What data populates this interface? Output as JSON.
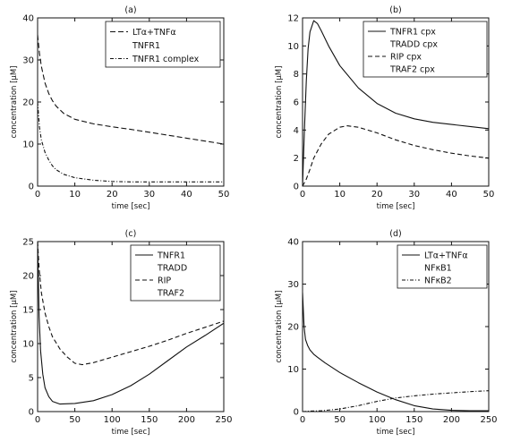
{
  "chart_data": [
    {
      "type": "line",
      "title": "(a)",
      "xlabel": "time [sec]",
      "ylabel": "concentration [μM]",
      "xlim": [
        0,
        50
      ],
      "ylim": [
        0,
        40
      ],
      "xticks": [
        0,
        10,
        20,
        30,
        40,
        50
      ],
      "yticks": [
        0,
        10,
        20,
        30,
        40
      ],
      "grid": false,
      "legend_position": "top-right",
      "series": [
        {
          "name": "LTα+TNFα",
          "dash": "6,3",
          "x": [
            0,
            0.5,
            1,
            2,
            3,
            4,
            5,
            7,
            10,
            15,
            20,
            25,
            30,
            35,
            40,
            45,
            50
          ],
          "y": [
            36,
            31.5,
            28.5,
            24.5,
            22,
            20.3,
            19,
            17.3,
            15.9,
            14.8,
            14.1,
            13.5,
            12.8,
            12.1,
            11.4,
            10.7,
            10
          ]
        },
        {
          "name": "TNFR1",
          "dash": "none",
          "x": [],
          "y": []
        },
        {
          "name": "TNFR1 complex",
          "dash": "4,2,1,2",
          "x": [
            0,
            0.5,
            1,
            2,
            3,
            4,
            5,
            7,
            10,
            15,
            20,
            25,
            30,
            35,
            40,
            45,
            50
          ],
          "y": [
            20,
            14,
            11,
            8,
            6.2,
            4.8,
            3.9,
            2.8,
            2.0,
            1.4,
            1.1,
            1.0,
            1.0,
            1.0,
            1.0,
            1.0,
            1.0
          ]
        }
      ]
    },
    {
      "type": "line",
      "title": "(b)",
      "xlabel": "time [sec]",
      "ylabel": "concentration [μM]",
      "xlim": [
        0,
        50
      ],
      "ylim": [
        0,
        12
      ],
      "xticks": [
        0,
        10,
        20,
        30,
        40,
        50
      ],
      "yticks": [
        0,
        2,
        4,
        6,
        8,
        10,
        12
      ],
      "grid": false,
      "legend_position": "top-right",
      "series": [
        {
          "name": "TNFR1 cpx",
          "dash": "none",
          "x": [
            0,
            0.5,
            1,
            1.5,
            2,
            3,
            4,
            5,
            7,
            10,
            15,
            20,
            25,
            30,
            35,
            40,
            45,
            50
          ],
          "y": [
            0,
            4,
            7.5,
            9.8,
            11,
            11.8,
            11.6,
            11.1,
            10.0,
            8.6,
            7.0,
            5.9,
            5.2,
            4.8,
            4.55,
            4.4,
            4.25,
            4.1
          ]
        },
        {
          "name": "TRADD cpx",
          "dash": "none",
          "x": [],
          "y": []
        },
        {
          "name": "RIP cpx",
          "dash": "5,3",
          "x": [
            0,
            1,
            2,
            3,
            5,
            7,
            10,
            12,
            15,
            20,
            25,
            30,
            35,
            40,
            45,
            50
          ],
          "y": [
            0,
            0.5,
            1.2,
            2.0,
            3.0,
            3.7,
            4.2,
            4.3,
            4.2,
            3.8,
            3.3,
            2.9,
            2.6,
            2.35,
            2.15,
            2.0
          ]
        },
        {
          "name": "TRAF2 cpx",
          "dash": "none",
          "x": [],
          "y": []
        }
      ]
    },
    {
      "type": "line",
      "title": "(c)",
      "xlabel": "time [sec]",
      "ylabel": "concentration [μM]",
      "xlim": [
        0,
        250
      ],
      "ylim": [
        0,
        25
      ],
      "xticks": [
        0,
        50,
        100,
        150,
        200,
        250
      ],
      "yticks": [
        0,
        5,
        10,
        15,
        20,
        25
      ],
      "grid": false,
      "legend_position": "top-right",
      "series": [
        {
          "name": "TNFR1",
          "dash": "none",
          "x": [
            0,
            2,
            4,
            7,
            10,
            15,
            20,
            30,
            50,
            75,
            100,
            125,
            150,
            175,
            200,
            225,
            250
          ],
          "y": [
            25,
            14,
            9,
            5.5,
            3.5,
            2.2,
            1.5,
            1.1,
            1.2,
            1.6,
            2.5,
            3.8,
            5.5,
            7.5,
            9.5,
            11.2,
            13
          ]
        },
        {
          "name": "TRADD",
          "dash": "none",
          "x": [],
          "y": []
        },
        {
          "name": "RIP",
          "dash": "5,3",
          "x": [
            0,
            2,
            5,
            10,
            15,
            20,
            30,
            40,
            50,
            60,
            75,
            100,
            125,
            150,
            175,
            200,
            225,
            250
          ],
          "y": [
            25,
            21,
            17.5,
            14.5,
            12.5,
            11,
            9.2,
            8.0,
            7.1,
            6.9,
            7.2,
            8.0,
            8.8,
            9.6,
            10.5,
            11.5,
            12.4,
            13.3
          ]
        },
        {
          "name": "TRAF2",
          "dash": "none",
          "x": [],
          "y": []
        }
      ]
    },
    {
      "type": "line",
      "title": "(d)",
      "xlabel": "time [sec]",
      "ylabel": "concentration [μM]",
      "xlim": [
        0,
        250
      ],
      "ylim": [
        0,
        40
      ],
      "xticks": [
        0,
        50,
        100,
        150,
        200,
        250
      ],
      "yticks": [
        0,
        10,
        20,
        30,
        40
      ],
      "grid": false,
      "legend_position": "top-right",
      "series": [
        {
          "name": "LTα+TNFα",
          "dash": "none",
          "x": [
            0,
            2,
            4,
            7,
            10,
            15,
            20,
            30,
            50,
            75,
            100,
            125,
            150,
            175,
            200,
            225,
            250
          ],
          "y": [
            28,
            20,
            17,
            15.5,
            14.5,
            13.5,
            12.8,
            11.5,
            9.2,
            6.8,
            4.6,
            2.8,
            1.4,
            0.6,
            0.3,
            0.2,
            0.2
          ]
        },
        {
          "name": "NFκB1",
          "dash": "none",
          "x": [],
          "y": []
        },
        {
          "name": "NFκB2",
          "dash": "4,2,1,2",
          "x": [
            0,
            10,
            25,
            50,
            75,
            100,
            125,
            150,
            175,
            200,
            225,
            250
          ],
          "y": [
            0,
            0.1,
            0.2,
            0.6,
            1.4,
            2.4,
            3.2,
            3.7,
            4.1,
            4.4,
            4.7,
            4.9
          ]
        }
      ]
    }
  ]
}
